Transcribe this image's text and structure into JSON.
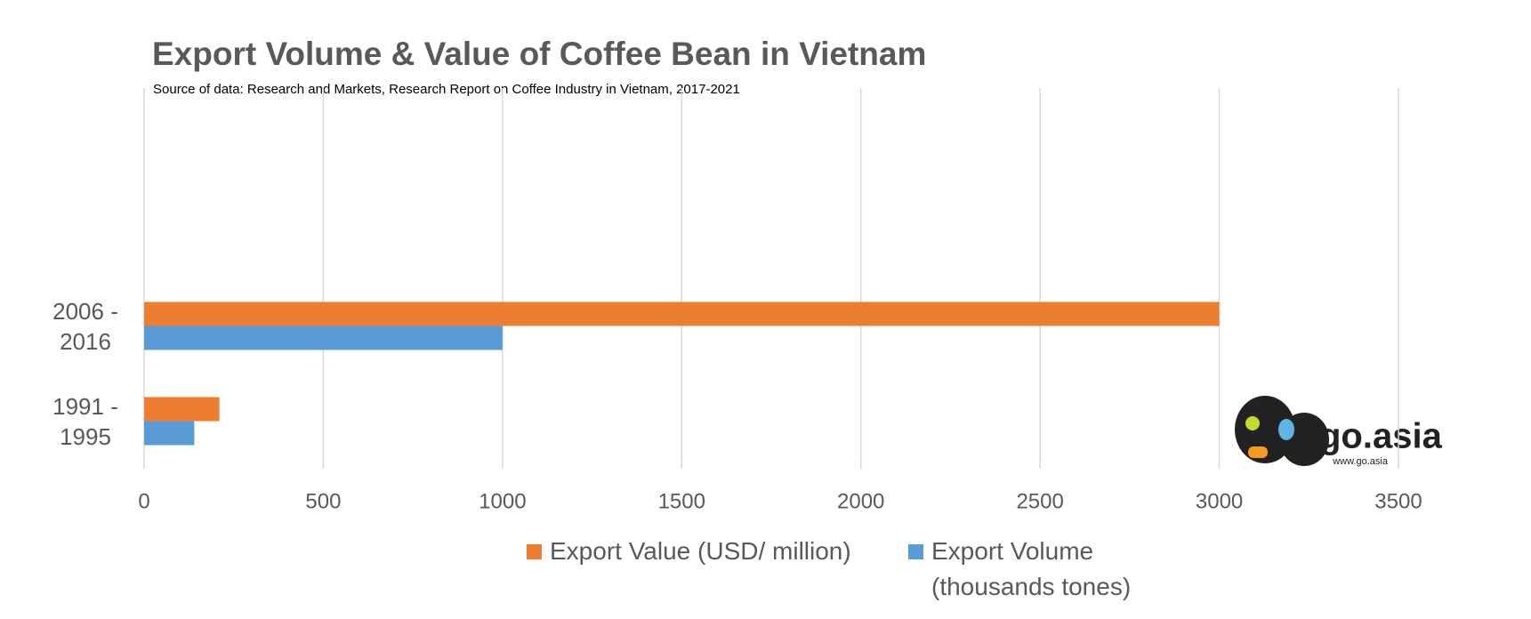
{
  "chart_data": {
    "type": "hbar",
    "title": "Export Volume & Value of Coffee Bean in Vietnam",
    "subtitle": "Source of data: Research and Markets, Research Report on Coffee Industry in Vietnam, 2017-2021",
    "categories": [
      "2006 - 2016",
      "1991 - 1995"
    ],
    "series": [
      {
        "name": "Export Value (USD/ million)",
        "color": "#ed7d31",
        "values": [
          3000,
          210
        ]
      },
      {
        "name": "Export Volume (thousands tones)",
        "color": "#5b9bd5",
        "values": [
          1000,
          140
        ]
      }
    ],
    "xlim": [
      0,
      3500
    ],
    "xticks": [
      0,
      500,
      1000,
      1500,
      2000,
      2500,
      3000,
      3500
    ],
    "grid": true,
    "legend": "bottom",
    "logo": {
      "text": "go.asia",
      "url": "www.go.asia"
    }
  }
}
